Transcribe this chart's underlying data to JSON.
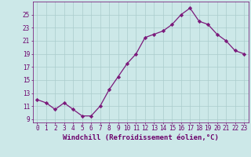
{
  "x": [
    0,
    1,
    2,
    3,
    4,
    5,
    6,
    7,
    8,
    9,
    10,
    11,
    12,
    13,
    14,
    15,
    16,
    17,
    18,
    19,
    20,
    21,
    22,
    23
  ],
  "y": [
    12.0,
    11.5,
    10.5,
    11.5,
    10.5,
    9.5,
    9.5,
    11.0,
    13.5,
    15.5,
    17.5,
    19.0,
    21.5,
    22.0,
    22.5,
    23.5,
    25.0,
    26.0,
    24.0,
    23.5,
    22.0,
    21.0,
    19.5,
    19.0
  ],
  "line_color": "#7b1a7b",
  "marker": "D",
  "marker_size": 2.2,
  "bg_color": "#cce8e8",
  "grid_color": "#aacccc",
  "xlabel": "Windchill (Refroidissement éolien,°C)",
  "ylim": [
    8.5,
    27
  ],
  "xlim": [
    -0.5,
    23.5
  ],
  "yticks": [
    9,
    11,
    13,
    15,
    17,
    19,
    21,
    23,
    25
  ],
  "xticks": [
    0,
    1,
    2,
    3,
    4,
    5,
    6,
    7,
    8,
    9,
    10,
    11,
    12,
    13,
    14,
    15,
    16,
    17,
    18,
    19,
    20,
    21,
    22,
    23
  ],
  "label_color": "#6b006b",
  "tick_fontsize": 5.5,
  "xlabel_fontsize": 6.5,
  "linewidth": 0.9
}
